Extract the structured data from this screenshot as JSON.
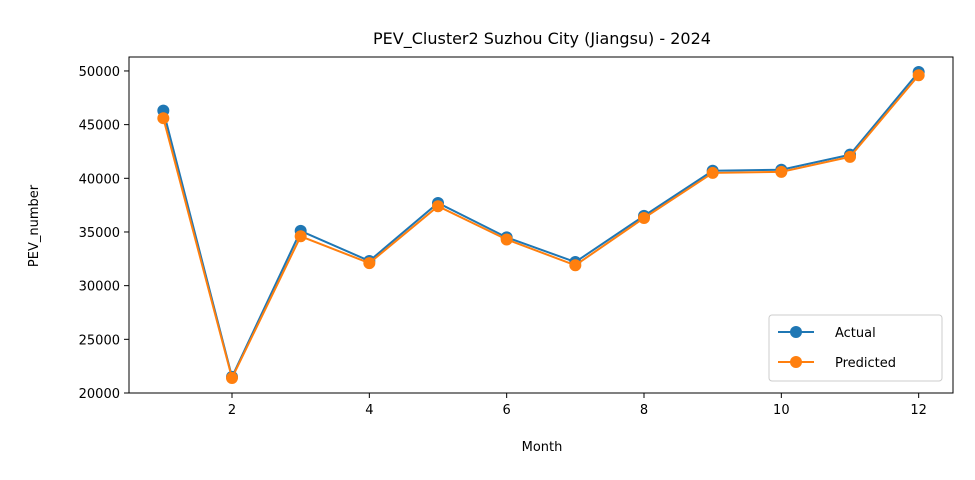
{
  "chart_data": {
    "type": "line",
    "title": "PEV_Cluster2 Suzhou City (Jiangsu) - 2024",
    "xlabel": "Month",
    "ylabel": "PEV_number",
    "x": [
      1,
      2,
      3,
      4,
      5,
      6,
      7,
      8,
      9,
      10,
      11,
      12
    ],
    "xlim": [
      0.5,
      12.5
    ],
    "ylim": [
      20000,
      51300
    ],
    "xticks": [
      2,
      4,
      6,
      8,
      10,
      12
    ],
    "yticks": [
      20000,
      25000,
      30000,
      35000,
      40000,
      45000,
      50000
    ],
    "grid": false,
    "legend_position": "lower-right",
    "series": [
      {
        "name": "Actual",
        "color": "#1f77b4",
        "marker": "circle",
        "values": [
          46300,
          21500,
          35100,
          32300,
          37700,
          34500,
          32200,
          36500,
          40700,
          40800,
          42200,
          49900
        ]
      },
      {
        "name": "Predicted",
        "color": "#ff7f0e",
        "marker": "circle",
        "values": [
          45600,
          21400,
          34600,
          32100,
          37400,
          34300,
          31900,
          36300,
          40500,
          40600,
          42000,
          49600
        ]
      }
    ]
  }
}
